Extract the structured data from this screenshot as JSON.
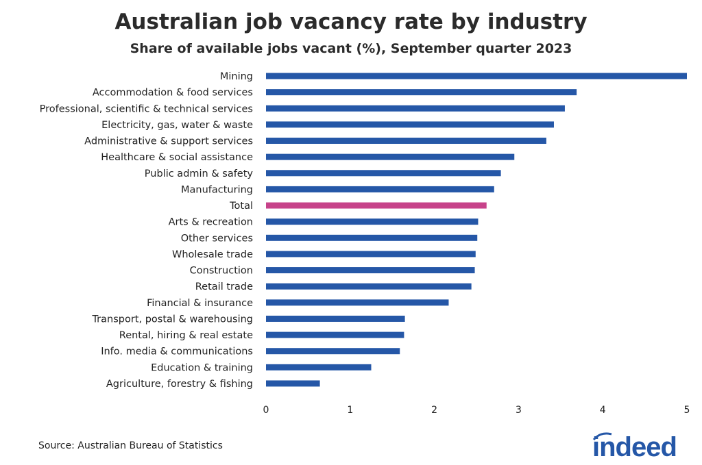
{
  "chart_data": {
    "type": "bar",
    "orientation": "horizontal",
    "title": "Australian job vacancy rate by industry",
    "subtitle": "Share of available jobs vacant (%), September quarter 2023",
    "categories": [
      "Mining",
      "Accommodation & food services",
      "Professional, scientific & technical services",
      "Electricity, gas, water & waste",
      "Administrative & support services",
      "Healthcare & social assistance",
      "Public admin & safety",
      "Manufacturing",
      "Total",
      "Arts & recreation",
      "Other services",
      "Wholesale trade",
      "Construction",
      "Retail trade",
      "Financial & insurance",
      "Transport, postal & warehousing",
      "Rental, hiring & real estate",
      "Info. media & communications",
      "Education & training",
      "Agriculture, forestry & fishing"
    ],
    "values": [
      5.0,
      3.69,
      3.55,
      3.42,
      3.33,
      2.95,
      2.79,
      2.71,
      2.62,
      2.52,
      2.51,
      2.49,
      2.48,
      2.44,
      2.17,
      1.65,
      1.64,
      1.59,
      1.25,
      0.64
    ],
    "highlight": "Total",
    "xlim": [
      0,
      5
    ],
    "xticks": [
      "0",
      "1",
      "2",
      "3",
      "4",
      "5"
    ],
    "grid": false,
    "colors": {
      "bar": "#2557a7",
      "highlight": "#c7428a"
    }
  },
  "source": "Source: Australian Bureau of Statistics",
  "logo": "indeed"
}
